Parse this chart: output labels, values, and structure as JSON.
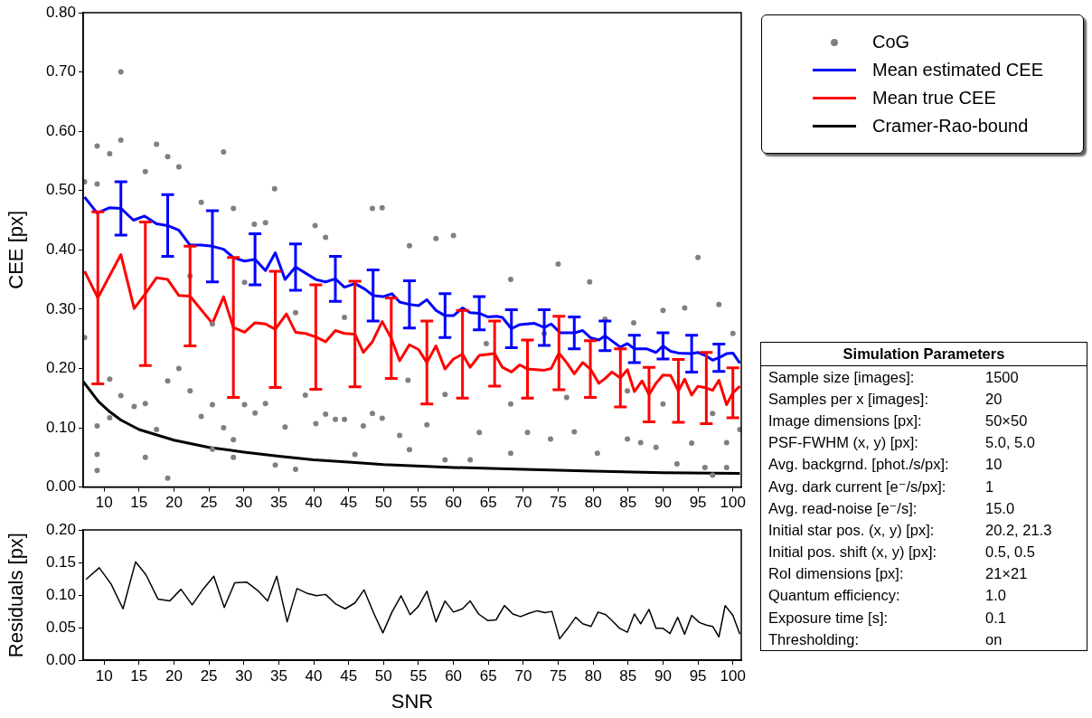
{
  "chart_data": [
    {
      "type": "line",
      "ylabel": "CEE [px]",
      "xlim": [
        7,
        101.2
      ],
      "xticks": [
        10,
        15,
        20,
        25,
        30,
        35,
        40,
        45,
        50,
        55,
        60,
        65,
        70,
        75,
        80,
        85,
        90,
        95,
        100
      ],
      "ylim": [
        0,
        0.8
      ],
      "yticks": [
        {
          "value": 0,
          "label": "0.00"
        },
        {
          "value": 0.1,
          "label": "0.10"
        },
        {
          "value": 0.2,
          "label": "0.20"
        },
        {
          "value": 0.3,
          "label": "0.30"
        },
        {
          "value": 0.4,
          "label": "0.40"
        },
        {
          "value": 0.5,
          "label": "0.50"
        },
        {
          "value": 0.6,
          "label": "0.60"
        },
        {
          "value": 0.7,
          "label": "0.70"
        },
        {
          "value": 0.8,
          "label": "0.80"
        }
      ],
      "legend": "top right",
      "series": [
        {
          "name": "CoG",
          "type": "scatter",
          "marker": "circle",
          "color": "#808080",
          "x": [
            12.4,
            12.4,
            9.0,
            10.8,
            17.5,
            19.1,
            20.7,
            15.9,
            27.1,
            9.0,
            7.2,
            34.4,
            28.5,
            23.9,
            31.5,
            40.2,
            33.1,
            48.4,
            49.8,
            41.7,
            7.2,
            9.0,
            9.0,
            9.0,
            10.8,
            10.8,
            12.4,
            14.3,
            15.9,
            15.9,
            17.5,
            19.1,
            19.1,
            20.7,
            22.3,
            23.9,
            25.5,
            25.5,
            27.1,
            28.5,
            28.5,
            30.1,
            31.6,
            33.1,
            34.5,
            35.9,
            37.4,
            38.8,
            40.3,
            41.7,
            43.1,
            44.4,
            45.9,
            47.1,
            48.4,
            49.8,
            52.3,
            22.3,
            25.5,
            30.1,
            37.4,
            44.4,
            53.5,
            60,
            57.5,
            53.7,
            95,
            75,
            79.5,
            68.2,
            98,
            90,
            53.7,
            58.8,
            62.4,
            68.2,
            73.9,
            80.6,
            89,
            92,
            96,
            97.1,
            99.1,
            101,
            56.2,
            63.7,
            70.6,
            77.3,
            84.9,
            86.8,
            94.1,
            99.1,
            64.7,
            73,
            81.7,
            85.8,
            93.1,
            100,
            58.8,
            68.2,
            76.2,
            84.9,
            90,
            97.1
          ],
          "values": [
            0.7,
            0.585,
            0.575,
            0.562,
            0.578,
            0.557,
            0.54,
            0.532,
            0.565,
            0.511,
            0.515,
            0.503,
            0.47,
            0.48,
            0.443,
            0.441,
            0.446,
            0.47,
            0.471,
            0.421,
            0.252,
            0.103,
            0.055,
            0.028,
            0.182,
            0.117,
            0.154,
            0.136,
            0.141,
            0.05,
            0.097,
            0.179,
            0.015,
            0.2,
            0.162,
            0.119,
            0.139,
            0.064,
            0.1,
            0.08,
            0.05,
            0.139,
            0.125,
            0.141,
            0.037,
            0.101,
            0.03,
            0.155,
            0.107,
            0.123,
            0.114,
            0.114,
            0.055,
            0.103,
            0.124,
            0.116,
            0.087,
            0.356,
            0.275,
            0.345,
            0.294,
            0.286,
            0.18,
            0.424,
            0.419,
            0.407,
            0.387,
            0.376,
            0.346,
            0.35,
            0.308,
            0.298,
            0.063,
            0.046,
            0.046,
            0.057,
            0.081,
            0.057,
            0.067,
            0.039,
            0.033,
            0.02,
            0.033,
            0.097,
            0.105,
            0.092,
            0.092,
            0.093,
            0.081,
            0.075,
            0.074,
            0.075,
            0.242,
            0.259,
            0.283,
            0.277,
            0.302,
            0.259,
            0.156,
            0.14,
            0.151,
            0.162,
            0.14,
            0.124
          ]
        },
        {
          "name": "Mean estimated CEE",
          "type": "line",
          "marker": "none",
          "color": "#0000ff",
          "x": [
            7.2,
            9.0,
            10.8,
            12.4,
            14.2,
            15.8,
            17.5,
            19.1,
            20.7,
            22.3,
            23.9,
            25.5,
            27.1,
            28.5,
            30.1,
            31.6,
            33.1,
            34.5,
            35.9,
            37.4,
            38.8,
            40.3,
            41.7,
            43.1,
            44.4,
            45.9,
            47.3,
            48.5,
            49.9,
            51.2,
            52.3,
            53.7,
            55,
            56.2,
            57.5,
            58.8,
            60,
            61.3,
            62.4,
            63.7,
            64.9,
            66.2,
            67,
            68.3,
            69.5,
            71.6,
            73,
            74,
            75.3,
            77.3,
            78.5,
            79.6,
            80.8,
            81.7,
            83.9,
            84.9,
            85.9,
            87.7,
            89,
            90,
            91.1,
            92.2,
            94.1,
            95,
            96.2,
            97.1,
            98,
            99.1,
            100,
            101
          ],
          "values": [
            0.489,
            0.462,
            0.471,
            0.47,
            0.45,
            0.457,
            0.444,
            0.441,
            0.433,
            0.408,
            0.408,
            0.406,
            0.401,
            0.387,
            0.381,
            0.384,
            0.365,
            0.395,
            0.35,
            0.371,
            0.361,
            0.35,
            0.346,
            0.351,
            0.337,
            0.343,
            0.334,
            0.323,
            0.321,
            0.326,
            0.312,
            0.308,
            0.306,
            0.316,
            0.298,
            0.289,
            0.289,
            0.302,
            0.294,
            0.293,
            0.287,
            0.288,
            0.286,
            0.267,
            0.274,
            0.276,
            0.269,
            0.275,
            0.26,
            0.26,
            0.264,
            0.252,
            0.248,
            0.255,
            0.236,
            0.242,
            0.233,
            0.233,
            0.227,
            0.238,
            0.229,
            0.226,
            0.225,
            0.227,
            0.221,
            0.214,
            0.218,
            0.225,
            0.226,
            0.209
          ],
          "errors": [
            null,
            null,
            null,
            0.045,
            null,
            null,
            null,
            0.052,
            null,
            null,
            null,
            0.06,
            null,
            null,
            null,
            0.043,
            null,
            null,
            null,
            0.039,
            null,
            null,
            null,
            0.038,
            null,
            null,
            null,
            0.043,
            null,
            null,
            null,
            0.04,
            null,
            null,
            null,
            0.037,
            null,
            null,
            null,
            0.028,
            null,
            null,
            null,
            0.032,
            null,
            null,
            0.03,
            null,
            null,
            0.027,
            null,
            null,
            null,
            0.025,
            null,
            null,
            0.023,
            null,
            null,
            0.022,
            null,
            null,
            0.031,
            null,
            null,
            null,
            0.023,
            null,
            null,
            null
          ]
        },
        {
          "name": "Mean true CEE",
          "type": "line",
          "marker": "none",
          "color": "#ff0000",
          "x": [
            7.2,
            9.1,
            12.4,
            14.3,
            15.9,
            17.5,
            19.1,
            20.7,
            22.3,
            25.5,
            27.1,
            28.5,
            30.1,
            31.6,
            33.1,
            34.5,
            36.1,
            37.4,
            38.8,
            40.3,
            41.7,
            43.1,
            44.4,
            45.9,
            47.1,
            48.4,
            49.8,
            51.1,
            52.3,
            53.7,
            55,
            56.2,
            57.5,
            58.8,
            60,
            61.3,
            62.4,
            63.7,
            65.9,
            67,
            68.3,
            69.5,
            70.6,
            73,
            74,
            75.1,
            76.2,
            77.3,
            78.5,
            79.6,
            80.8,
            81.7,
            82.7,
            83.9,
            84.9,
            85.9,
            87,
            88,
            89,
            90,
            91.1,
            92.2,
            93.1,
            94.1,
            95,
            96.2,
            97.1,
            98,
            99.1,
            100,
            101
          ],
          "values": [
            0.364,
            0.319,
            0.392,
            0.301,
            0.326,
            0.353,
            0.35,
            0.323,
            0.322,
            0.276,
            0.321,
            0.269,
            0.261,
            0.277,
            0.275,
            0.266,
            0.292,
            0.261,
            0.259,
            0.253,
            0.245,
            0.264,
            0.259,
            0.258,
            0.227,
            0.245,
            0.279,
            0.251,
            0.213,
            0.24,
            0.232,
            0.21,
            0.238,
            0.199,
            0.216,
            0.224,
            0.202,
            0.222,
            0.225,
            0.202,
            0.194,
            0.206,
            0.199,
            0.197,
            0.2,
            0.226,
            0.21,
            0.191,
            0.21,
            0.199,
            0.175,
            0.183,
            0.194,
            0.184,
            0.198,
            0.161,
            0.179,
            0.156,
            0.175,
            0.189,
            0.188,
            0.162,
            0.182,
            0.155,
            0.17,
            0.167,
            0.163,
            0.18,
            0.139,
            0.159,
            0.17
          ],
          "errors": [
            null,
            0.145,
            null,
            null,
            0.121,
            null,
            null,
            null,
            0.084,
            null,
            null,
            0.118,
            null,
            null,
            null,
            0.098,
            null,
            null,
            null,
            0.088,
            null,
            null,
            null,
            0.089,
            null,
            null,
            null,
            0.068,
            null,
            null,
            null,
            0.07,
            null,
            null,
            null,
            0.074,
            null,
            null,
            0.055,
            null,
            null,
            null,
            0.049,
            null,
            null,
            0.062,
            null,
            null,
            null,
            0.048,
            null,
            null,
            null,
            0.049,
            null,
            null,
            null,
            0.046,
            null,
            null,
            null,
            0.053,
            null,
            null,
            null,
            0.06,
            null,
            null,
            null,
            0.042,
            null
          ]
        },
        {
          "name": "Cramer-Rao-bound",
          "type": "line",
          "marker": "none",
          "color": "#000000",
          "x": [
            7,
            9.2,
            10.8,
            12.4,
            15,
            20,
            25,
            30,
            35,
            40,
            45,
            50,
            60,
            70,
            80,
            90,
            101
          ],
          "values": [
            0.178,
            0.144,
            0.127,
            0.113,
            0.097,
            0.079,
            0.067,
            0.059,
            0.052,
            0.046,
            0.042,
            0.038,
            0.033,
            0.03,
            0.027,
            0.024,
            0.023
          ]
        }
      ]
    },
    {
      "type": "line",
      "xlabel": "SNR",
      "ylabel": "Residuals [px]",
      "xlim": [
        7,
        101.2
      ],
      "xticks": [
        10,
        15,
        20,
        25,
        30,
        35,
        40,
        45,
        50,
        55,
        60,
        65,
        70,
        75,
        80,
        85,
        90,
        95,
        100
      ],
      "ylim": [
        0,
        0.2
      ],
      "yticks": [
        {
          "value": 0,
          "label": "0.00"
        },
        {
          "value": 0.05,
          "label": "0.05"
        },
        {
          "value": 0.1,
          "label": "0.10"
        },
        {
          "value": 0.15,
          "label": "0.15"
        },
        {
          "value": 0.2,
          "label": "0.20"
        }
      ],
      "series": [
        {
          "color": "#000000",
          "x": [
            7.4,
            9.3,
            11,
            12.7,
            14.5,
            16,
            17.7,
            19.4,
            21,
            22.6,
            24.1,
            25.7,
            27.2,
            28.7,
            30.4,
            32,
            33.4,
            34.7,
            36.2,
            37.6,
            39,
            40.4,
            41.7,
            43.2,
            44.5,
            45.9,
            47.2,
            48.6,
            49.9,
            51.2,
            52.5,
            53.8,
            55,
            56.2,
            57.5,
            58.8,
            60,
            61.3,
            62.4,
            63.6,
            64.9,
            66.1,
            67.3,
            68.5,
            69.6,
            70.8,
            72,
            73.1,
            74.1,
            75.2,
            76.5,
            77.5,
            78.5,
            79.7,
            80.7,
            81.8,
            82.8,
            83.8,
            84.9,
            85.9,
            86.8,
            88,
            89,
            90,
            91,
            92.1,
            93.1,
            94.1,
            95.2,
            96.2,
            97.1,
            98,
            98.9,
            100,
            101
          ],
          "values": [
            0.124,
            0.142,
            0.117,
            0.079,
            0.151,
            0.131,
            0.094,
            0.091,
            0.109,
            0.085,
            0.108,
            0.129,
            0.081,
            0.119,
            0.12,
            0.107,
            0.091,
            0.129,
            0.059,
            0.11,
            0.103,
            0.099,
            0.101,
            0.086,
            0.079,
            0.088,
            0.108,
            0.072,
            0.042,
            0.074,
            0.099,
            0.07,
            0.083,
            0.106,
            0.059,
            0.091,
            0.074,
            0.079,
            0.091,
            0.071,
            0.061,
            0.062,
            0.084,
            0.071,
            0.067,
            0.072,
            0.076,
            0.073,
            0.075,
            0.033,
            0.051,
            0.066,
            0.056,
            0.052,
            0.074,
            0.07,
            0.06,
            0.049,
            0.043,
            0.071,
            0.056,
            0.078,
            0.049,
            0.049,
            0.041,
            0.066,
            0.04,
            0.069,
            0.058,
            0.054,
            0.052,
            0.036,
            0.084,
            0.069,
            0.04
          ]
        }
      ]
    },
    {
      "type": "other",
      "title": "Simulation Parameters",
      "annotations": [
        "Sample size [images]:",
        "1500",
        "Samples per x [images]:",
        "20",
        "Image dimensions [px]:",
        "50×50",
        "PSF-FWHM (x, y) [px]:",
        "5.0, 5.0",
        "Avg. backgrnd. [phot./s/px]:",
        "10",
        "Avg. dark current [e⁻/s/px]:",
        "1",
        "Avg. read-noise [e⁻/s]:",
        "15.0",
        "Initial star pos. (x, y) [px]:",
        "20.2, 21.3",
        "Initial pos. shift (x, y) [px]:",
        "0.5, 0.5",
        "RoI dimensions [px]:",
        "21×21",
        "Quantum efficiency:",
        "1.0",
        "Exposure time [s]:",
        "0.1",
        "Thresholding:",
        "on"
      ]
    }
  ]
}
